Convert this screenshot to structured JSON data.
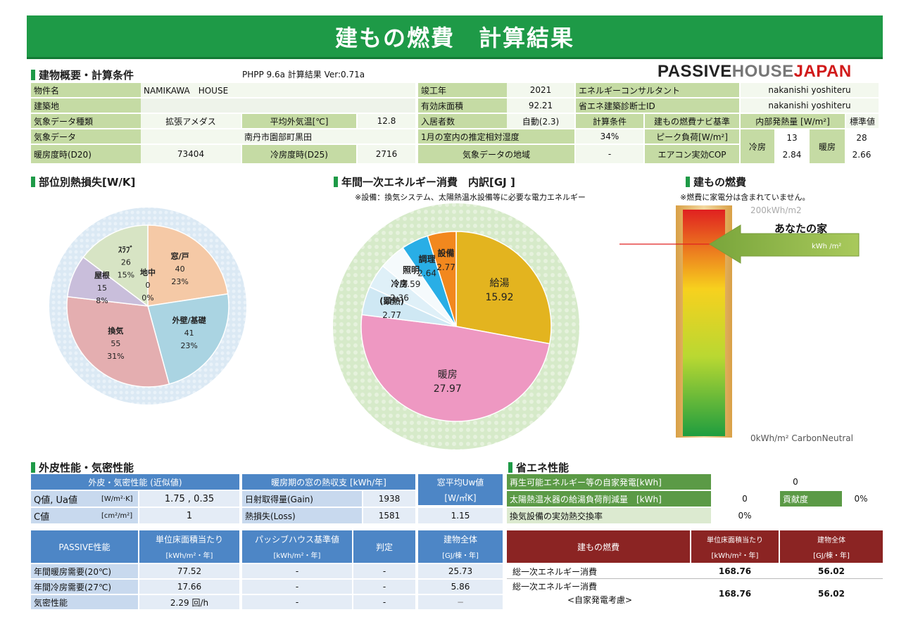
{
  "header": {
    "title": "建もの燃費　計算結果",
    "version": "PHPP 9.6a  計算結果 Ver:0.71a"
  },
  "logo": {
    "p": "PASSIVE",
    "h": "HOUSE",
    "j": "JAPAN"
  },
  "sections": {
    "overview": "建物概要・計算条件",
    "heatloss": "部位別熱損失[W/K]",
    "energy": "年間一次エネルギー消費　内訳[GJ ]",
    "energy_note": "※設備：換気システム、太陽熱温水設備等に必要な電力エネルギー",
    "fuel": "建もの燃費",
    "fuel_note": "※燃費に家電分は含まれていません。",
    "envelope": "外皮性能・気密性能",
    "eco": "省エネ性能"
  },
  "overview": {
    "prop_name_l": "物件名",
    "prop_name_v": "NAMIKAWA　HOUSE",
    "site_l": "建築地",
    "climate_type_l": "気象データ種類",
    "climate_type_v": "拡張アメダス",
    "avg_temp_l": "平均外気温[℃]",
    "avg_temp_v": "12.8",
    "climate_l": "気象データ",
    "climate_v": "南丹市園部町黒田",
    "hdd_l": "暖房度時(D20)",
    "hdd_v": "73404",
    "cdd_l": "冷房度時(D25)",
    "cdd_v": "2716",
    "year_l": "竣工年",
    "year_v": "2021",
    "area_l": "有効床面積",
    "area_v": "92.21",
    "occ_l": "入居者数",
    "occ_v": "自動(2.3)",
    "rh_l": "1月の室内の推定相対湿度",
    "rh_v": "34%",
    "region_l": "気象データの地域",
    "region_v": "-",
    "consult_l": "エネルギーコンサルタント",
    "consult_v": "nakanishi yoshiteru",
    "diag_l": "省エネ建築診断士ID",
    "diag_v": "nakanishi yoshiteru",
    "calc_l": "計算条件",
    "calc_v": "建もの燃費ナビ基準",
    "peak_l": "ピーク負荷[W/m²]",
    "cop_l": "エアコン実効COP",
    "ihg_l": "内部発熱量 [W/m²]",
    "std_l": "標準値",
    "cool_l": "冷房",
    "cool_peak": "13",
    "cool_cop": "2.84",
    "heat_l": "暖房",
    "heat_peak": "28",
    "heat_cop": "2.66"
  },
  "fuel_bar": {
    "top": "200kWh/m2",
    "bottom": "0kWh/m² CarbonNeutral",
    "arrow_label": "あなたの家",
    "arrow_unit": "kWh /m²"
  },
  "envelope": {
    "h1": "外皮・気密性能 (近似値)",
    "h2": "暖房期の窓の熱収支 [kWh/年]",
    "h3": "窓平均Uw値",
    "h3b": "[W/㎡K]",
    "q_l": "Q値, Ua値",
    "q_u": "[W/m²·K]",
    "q_v": "1.75 , 0.35",
    "c_l": "C値",
    "c_u": "[cm²/m²]",
    "c_v": "1",
    "gain_l": "日射取得量(Gain)",
    "gain_v": "1938",
    "loss_l": "熱損失(Loss)",
    "loss_v": "1581",
    "uw_v": "1.15",
    "p_h": "PASSIVE性能",
    "p_h2": "単位床面積当たり",
    "p_h2b": "[kWh/m²・年]",
    "p_h3": "パッシブハウス基準値",
    "p_h3b": "[kWh/m²・年]",
    "p_h4": "判定",
    "p_h5": "建物全体",
    "p_h5b": "[GJ/棟・年]",
    "r1": [
      "年間暖房需要(20℃)",
      "77.52",
      "-",
      "-",
      "25.73"
    ],
    "r2": [
      "年間冷房需要(27℃)",
      "17.66",
      "-",
      "-",
      "5.86"
    ],
    "r3": [
      "気密性能",
      "2.29 回/h",
      "-",
      "-",
      "−"
    ]
  },
  "eco": {
    "re_l": "再生可能エネルギー等の自家発電[kWh]",
    "re_v": "0",
    "sol_l": "太陽熱温水器の給湯負荷削減量　[kWh]",
    "sol_v": "0",
    "contrib_l": "貢献度",
    "contrib_v": "0%",
    "vent_l": "換気設備の実効熱交換率",
    "vent_v": "0%",
    "h1": "建もの燃費",
    "h2": "単位床面積当たり",
    "h2b": "[kWh/m²・年]",
    "h3": "建物全体",
    "h3b": "[GJ/棟・年]",
    "t1_l": "総一次エネルギー消費",
    "t1_a": "168.76",
    "t1_b": "56.02",
    "t2_l": "総一次エネルギー消費",
    "t2_l2": "<自家発電考慮>",
    "t2_a": "168.76",
    "t2_b": "56.02"
  },
  "chart_data": [
    {
      "type": "pie",
      "title": "部位別熱損失[W/K]",
      "slices": [
        {
          "name": "窓/戸",
          "value": 40,
          "pct": "23%",
          "color": "#f5c9a6"
        },
        {
          "name": "外壁/基礎",
          "value": 41,
          "pct": "23%",
          "color": "#aad4e2"
        },
        {
          "name": "換気",
          "value": 55,
          "pct": "31%",
          "color": "#e4aeb0"
        },
        {
          "name": "屋根",
          "value": 15,
          "pct": "8%",
          "color": "#c9bedb"
        },
        {
          "name": "ｽﾗﾌﾞ",
          "value": 26,
          "pct": "15%",
          "color": "#d7e4c4"
        },
        {
          "name": "地中",
          "value": 0,
          "pct": "0%",
          "color": "#e0e0e0"
        }
      ]
    },
    {
      "type": "pie",
      "title": "年間一次エネルギー消費　内訳[GJ ]",
      "slices": [
        {
          "name": "給湯",
          "value": 15.92,
          "color": "#e3b41f"
        },
        {
          "name": "暖房",
          "value": 27.97,
          "color": "#ee98c2"
        },
        {
          "name": "(顕熱)",
          "value": 2.77,
          "color": "#cfe8f4"
        },
        {
          "name": "冷房",
          "value": 2.36,
          "color": "#dff0f8"
        },
        {
          "name": "照明",
          "value": 2.59,
          "color": "#f5fafc"
        },
        {
          "name": "調理",
          "value": 2.64,
          "color": "#29aee6"
        },
        {
          "name": "設備",
          "value": 2.77,
          "color": "#f2881e"
        }
      ]
    }
  ]
}
